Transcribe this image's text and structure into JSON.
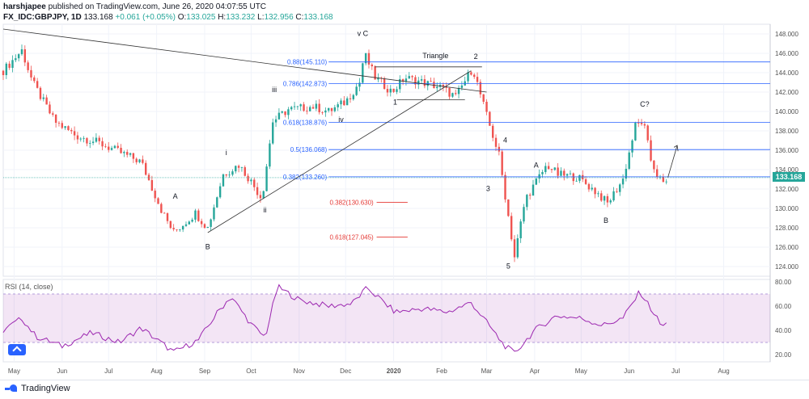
{
  "header": {
    "publisher": "harshjapee",
    "published_text": "published on TradingView.com, June 26, 2020 04:07:55 UTC",
    "symbol": "FX_IDC:GBPJPY, 1D",
    "last": "133.168",
    "change": "+0.061 (+0.05%)",
    "open_label": "O:",
    "open": "133.025",
    "high_label": "H:",
    "high": "133.232",
    "low_label": "L:",
    "low": "132.956",
    "close_label": "C:",
    "close": "133.168"
  },
  "footer": {
    "brand": "TradingView"
  },
  "rsi": {
    "label": "RSI (14, close)"
  },
  "colors": {
    "up": "#26a69a",
    "down": "#ef5350",
    "rsi": "#9c27b0",
    "fib": "#2962ff",
    "fib_red": "#e53935"
  },
  "chart_data": {
    "type": "candlestick",
    "price_axis": {
      "min": 123.0,
      "max": 149.0,
      "ticks": [
        124,
        126,
        128,
        130,
        132,
        134,
        136,
        138,
        140,
        142,
        144,
        146,
        148
      ],
      "tick_labels": [
        "124.000",
        "126.000",
        "128.000",
        "130.000",
        "132.000",
        "134.000",
        "136.000",
        "138.000",
        "140.000",
        "142.000",
        "144.000",
        "146.000",
        "148.000"
      ]
    },
    "rsi_axis": {
      "min": 14,
      "max": 82,
      "ticks": [
        20,
        40,
        60,
        80
      ],
      "tick_labels": [
        "20.00",
        "40.00",
        "60.00",
        "80.00"
      ],
      "band": [
        30,
        70
      ]
    },
    "x_axis": {
      "start": "2019-04-24",
      "end": "2020-08-31",
      "months": [
        {
          "date": "2019-05-01",
          "label": "May"
        },
        {
          "date": "2019-06-01",
          "label": "Jun"
        },
        {
          "date": "2019-07-01",
          "label": "Jul"
        },
        {
          "date": "2019-08-01",
          "label": "Aug"
        },
        {
          "date": "2019-09-01",
          "label": "Sep"
        },
        {
          "date": "2019-10-01",
          "label": "Oct"
        },
        {
          "date": "2019-11-01",
          "label": "Nov"
        },
        {
          "date": "2019-12-01",
          "label": "Dec"
        },
        {
          "date": "2020-01-01",
          "label": "2020"
        },
        {
          "date": "2020-02-01",
          "label": "Feb"
        },
        {
          "date": "2020-03-01",
          "label": "Mar"
        },
        {
          "date": "2020-04-01",
          "label": "Apr"
        },
        {
          "date": "2020-05-01",
          "label": "May"
        },
        {
          "date": "2020-06-01",
          "label": "Jun"
        },
        {
          "date": "2020-07-01",
          "label": "Jul"
        },
        {
          "date": "2020-08-01",
          "label": "Aug"
        }
      ]
    },
    "price_path": [
      [
        "2019-04-24",
        144.2
      ],
      [
        "2019-05-06",
        146.3
      ],
      [
        "2019-05-13",
        143.0
      ],
      [
        "2019-05-27",
        139.0
      ],
      [
        "2019-06-10",
        137.5
      ],
      [
        "2019-06-24",
        136.8
      ],
      [
        "2019-07-08",
        135.8
      ],
      [
        "2019-07-22",
        134.8
      ],
      [
        "2019-08-05",
        129.5
      ],
      [
        "2019-08-12",
        127.5
      ],
      [
        "2019-08-26",
        129.5
      ],
      [
        "2019-09-03",
        128.0
      ],
      [
        "2019-09-13",
        133.5
      ],
      [
        "2019-09-23",
        134.5
      ],
      [
        "2019-09-30",
        133.0
      ],
      [
        "2019-10-08",
        131.0
      ],
      [
        "2019-10-15",
        139.0
      ],
      [
        "2019-10-25",
        140.2
      ],
      [
        "2019-11-10",
        140.5
      ],
      [
        "2019-11-20",
        140.0
      ],
      [
        "2019-12-01",
        141.0
      ],
      [
        "2019-12-10",
        143.0
      ],
      [
        "2019-12-13",
        146.0
      ],
      [
        "2019-12-20",
        143.5
      ],
      [
        "2019-12-31",
        142.0
      ],
      [
        "2020-01-08",
        143.5
      ],
      [
        "2020-01-20",
        143.0
      ],
      [
        "2020-01-31",
        142.5
      ],
      [
        "2020-02-10",
        141.5
      ],
      [
        "2020-02-21",
        144.5
      ],
      [
        "2020-03-02",
        139.0
      ],
      [
        "2020-03-09",
        135.5
      ],
      [
        "2020-03-19",
        125.0
      ],
      [
        "2020-03-26",
        131.0
      ],
      [
        "2020-04-09",
        134.5
      ],
      [
        "2020-04-16",
        133.5
      ],
      [
        "2020-04-29",
        133.2
      ],
      [
        "2020-05-12",
        131.5
      ],
      [
        "2020-05-18",
        130.5
      ],
      [
        "2020-05-28",
        133.0
      ],
      [
        "2020-06-05",
        138.5
      ],
      [
        "2020-06-10",
        139.0
      ],
      [
        "2020-06-15",
        135.0
      ],
      [
        "2020-06-19",
        133.5
      ],
      [
        "2020-06-24",
        132.2
      ],
      [
        "2020-06-26",
        133.168
      ]
    ],
    "rsi_path": [
      [
        "2019-04-24",
        40
      ],
      [
        "2019-05-06",
        50
      ],
      [
        "2019-05-15",
        35
      ],
      [
        "2019-06-01",
        27
      ],
      [
        "2019-06-20",
        38
      ],
      [
        "2019-07-08",
        30
      ],
      [
        "2019-07-22",
        42
      ],
      [
        "2019-08-12",
        22
      ],
      [
        "2019-08-28",
        32
      ],
      [
        "2019-09-10",
        56
      ],
      [
        "2019-09-18",
        68
      ],
      [
        "2019-10-01",
        45
      ],
      [
        "2019-10-10",
        34
      ],
      [
        "2019-10-18",
        76
      ],
      [
        "2019-11-01",
        65
      ],
      [
        "2019-11-20",
        60
      ],
      [
        "2019-12-05",
        62
      ],
      [
        "2019-12-15",
        75
      ],
      [
        "2020-01-02",
        55
      ],
      [
        "2020-01-20",
        58
      ],
      [
        "2020-02-05",
        55
      ],
      [
        "2020-02-20",
        63
      ],
      [
        "2020-03-02",
        45
      ],
      [
        "2020-03-12",
        28
      ],
      [
        "2020-03-19",
        21
      ],
      [
        "2020-04-01",
        40
      ],
      [
        "2020-04-15",
        52
      ],
      [
        "2020-05-01",
        50
      ],
      [
        "2020-05-15",
        44
      ],
      [
        "2020-05-28",
        50
      ],
      [
        "2020-06-08",
        72
      ],
      [
        "2020-06-18",
        52
      ],
      [
        "2020-06-22",
        43
      ],
      [
        "2020-06-26",
        46
      ]
    ],
    "price_now": {
      "value": 133.168,
      "label": "133.168"
    },
    "fib_levels": [
      {
        "value": 145.11,
        "label": "0.88(145.110)"
      },
      {
        "value": 142.873,
        "label": "0.786(142.873)"
      },
      {
        "value": 138.876,
        "label": "0.618(138.876)"
      },
      {
        "value": 136.068,
        "label": "0.5(136.068)"
      },
      {
        "value": 133.26,
        "label": "0.382(133.260)"
      }
    ],
    "fib_red": [
      {
        "value": 130.63,
        "label": "0.382(130.630)"
      },
      {
        "value": 127.045,
        "label": "0.618(127.045)"
      }
    ],
    "wave_labels": [
      {
        "text": "v C",
        "date": "2019-12-12",
        "price": 147.8
      },
      {
        "text": "Triangle",
        "date": "2020-01-28",
        "price": 145.5
      },
      {
        "text": "2",
        "date": "2020-02-23",
        "price": 145.4
      },
      {
        "text": "iii",
        "date": "2019-10-16",
        "price": 142.0
      },
      {
        "text": "1",
        "date": "2020-01-02",
        "price": 140.7
      },
      {
        "text": "iv",
        "date": "2019-11-28",
        "price": 138.9
      },
      {
        "text": "C?",
        "date": "2020-06-11",
        "price": 140.5
      },
      {
        "text": "4",
        "date": "2020-03-13",
        "price": 136.8
      },
      {
        "text": "i",
        "date": "2019-09-15",
        "price": 135.5
      },
      {
        "text": "A",
        "date": "2020-04-02",
        "price": 134.2
      },
      {
        "text": "A",
        "date": "2019-08-13",
        "price": 131.0
      },
      {
        "text": "3",
        "date": "2020-03-02",
        "price": 131.8
      },
      {
        "text": "ii",
        "date": "2019-10-10",
        "price": 129.6
      },
      {
        "text": "B",
        "date": "2020-05-17",
        "price": 128.5
      },
      {
        "text": "B",
        "date": "2019-09-03",
        "price": 125.8
      },
      {
        "text": "5",
        "date": "2020-03-15",
        "price": 123.8
      }
    ],
    "trend_lines": [
      {
        "from": [
          "2019-04-24",
          148.5
        ],
        "to": [
          "2020-03-01",
          142.0
        ]
      },
      {
        "from": [
          "2019-09-03",
          127.5
        ],
        "to": [
          "2020-02-20",
          144.2
        ]
      }
    ],
    "triangle": [
      {
        "from": [
          "2019-12-20",
          144.6
        ],
        "to": [
          "2020-02-27",
          144.6
        ]
      },
      {
        "from": [
          "2020-01-03",
          141.2
        ],
        "to": [
          "2020-02-16",
          141.2
        ]
      }
    ]
  }
}
